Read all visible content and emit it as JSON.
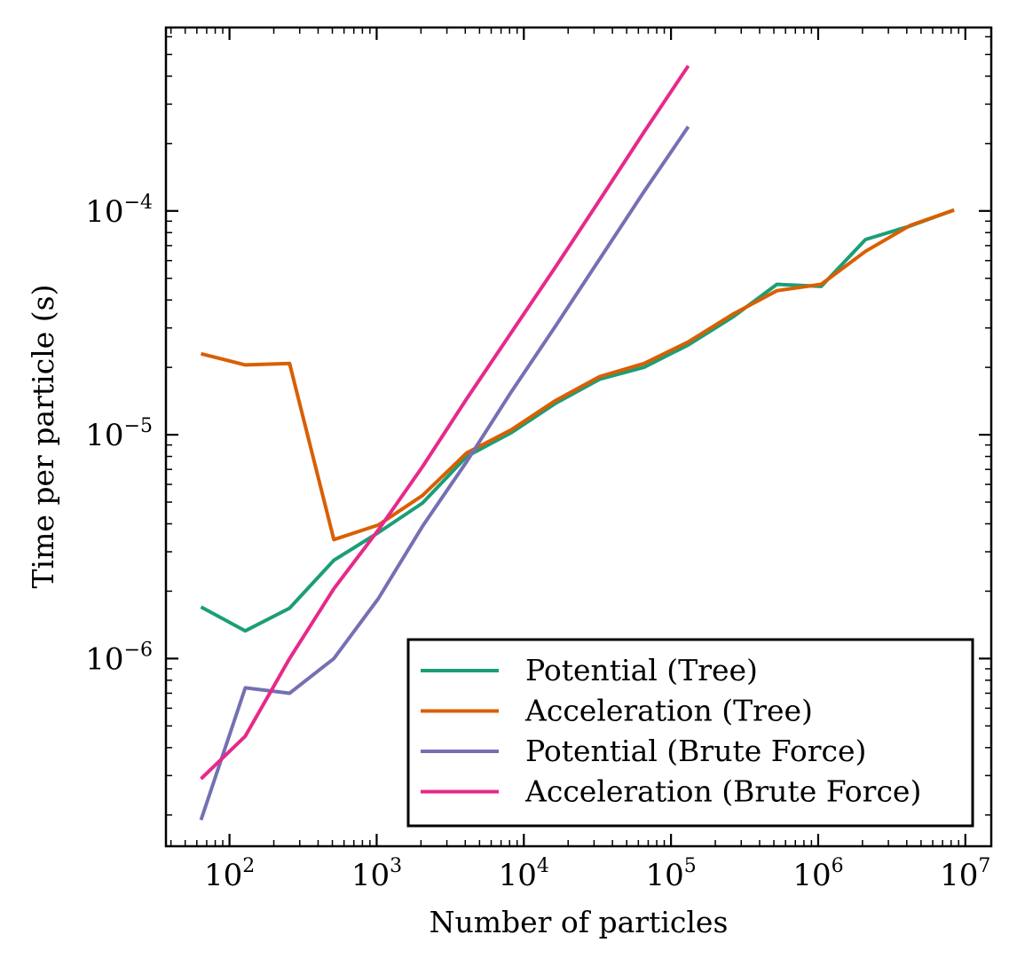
{
  "chart_data": {
    "type": "line",
    "title": "",
    "xlabel": "Number of particles",
    "ylabel": "Time per particle (s)",
    "xscale": "log",
    "yscale": "log",
    "xlim": [
      37,
      15000000
    ],
    "ylim": [
      1.45e-07,
      0.00066
    ],
    "xticks": [
      {
        "value": 100,
        "base": "10",
        "exp": "2"
      },
      {
        "value": 1000,
        "base": "10",
        "exp": "3"
      },
      {
        "value": 10000,
        "base": "10",
        "exp": "4"
      },
      {
        "value": 100000,
        "base": "10",
        "exp": "5"
      },
      {
        "value": 1000000,
        "base": "10",
        "exp": "6"
      },
      {
        "value": 10000000,
        "base": "10",
        "exp": "7"
      }
    ],
    "yticks": [
      {
        "value": 1e-06,
        "base": "10",
        "exp": "−6"
      },
      {
        "value": 1e-05,
        "base": "10",
        "exp": "−5"
      },
      {
        "value": 0.0001,
        "base": "10",
        "exp": "−4"
      }
    ],
    "grid": false,
    "legend_position": "lower-right",
    "series": [
      {
        "name": "Potential (Tree)",
        "color": "#1b9e77",
        "x": [
          64,
          128,
          256,
          512,
          1024,
          2048,
          4096,
          8192,
          16384,
          32768,
          65536,
          131072,
          262144,
          524288,
          1048576,
          2097152,
          4194304,
          8388608
        ],
        "y": [
          1.7e-06,
          1.33e-06,
          1.68e-06,
          2.75e-06,
          3.65e-06,
          4.95e-06,
          8e-06,
          1.02e-05,
          1.38e-05,
          1.77e-05,
          2e-05,
          2.52e-05,
          3.35e-05,
          4.7e-05,
          4.6e-05,
          7.45e-05,
          8.55e-05,
          0.000101
        ]
      },
      {
        "name": "Acceleration (Tree)",
        "color": "#d95f02",
        "x": [
          64,
          128,
          256,
          512,
          1024,
          2048,
          4096,
          8192,
          16384,
          32768,
          65536,
          131072,
          262144,
          524288,
          1048576,
          2097152,
          4194304,
          8388608
        ],
        "y": [
          2.3e-05,
          2.05e-05,
          2.08e-05,
          3.4e-06,
          3.95e-06,
          5.35e-06,
          8.3e-06,
          1.05e-05,
          1.42e-05,
          1.82e-05,
          2.08e-05,
          2.6e-05,
          3.45e-05,
          4.4e-05,
          4.7e-05,
          6.6e-05,
          8.6e-05,
          0.000101
        ]
      },
      {
        "name": "Potential (Brute Force)",
        "color": "#7570b3",
        "x": [
          64,
          128,
          256,
          512,
          1024,
          2048,
          4096,
          8192,
          16384,
          32768,
          65536,
          131072
        ],
        "y": [
          1.9e-07,
          7.4e-07,
          7e-07,
          1e-06,
          1.85e-06,
          3.9e-06,
          7.6e-06,
          1.55e-05,
          3.05e-05,
          6.1e-05,
          0.000122,
          0.000238
        ]
      },
      {
        "name": "Acceleration (Brute Force)",
        "color": "#e7298a",
        "x": [
          64,
          128,
          256,
          512,
          1024,
          2048,
          4096,
          8192,
          16384,
          32768,
          65536,
          131072
        ],
        "y": [
          2.9e-07,
          4.5e-07,
          1e-06,
          2.05e-06,
          3.75e-06,
          7.2e-06,
          1.45e-05,
          2.85e-05,
          5.6e-05,
          0.000112,
          0.000225,
          0.000445
        ]
      }
    ]
  }
}
